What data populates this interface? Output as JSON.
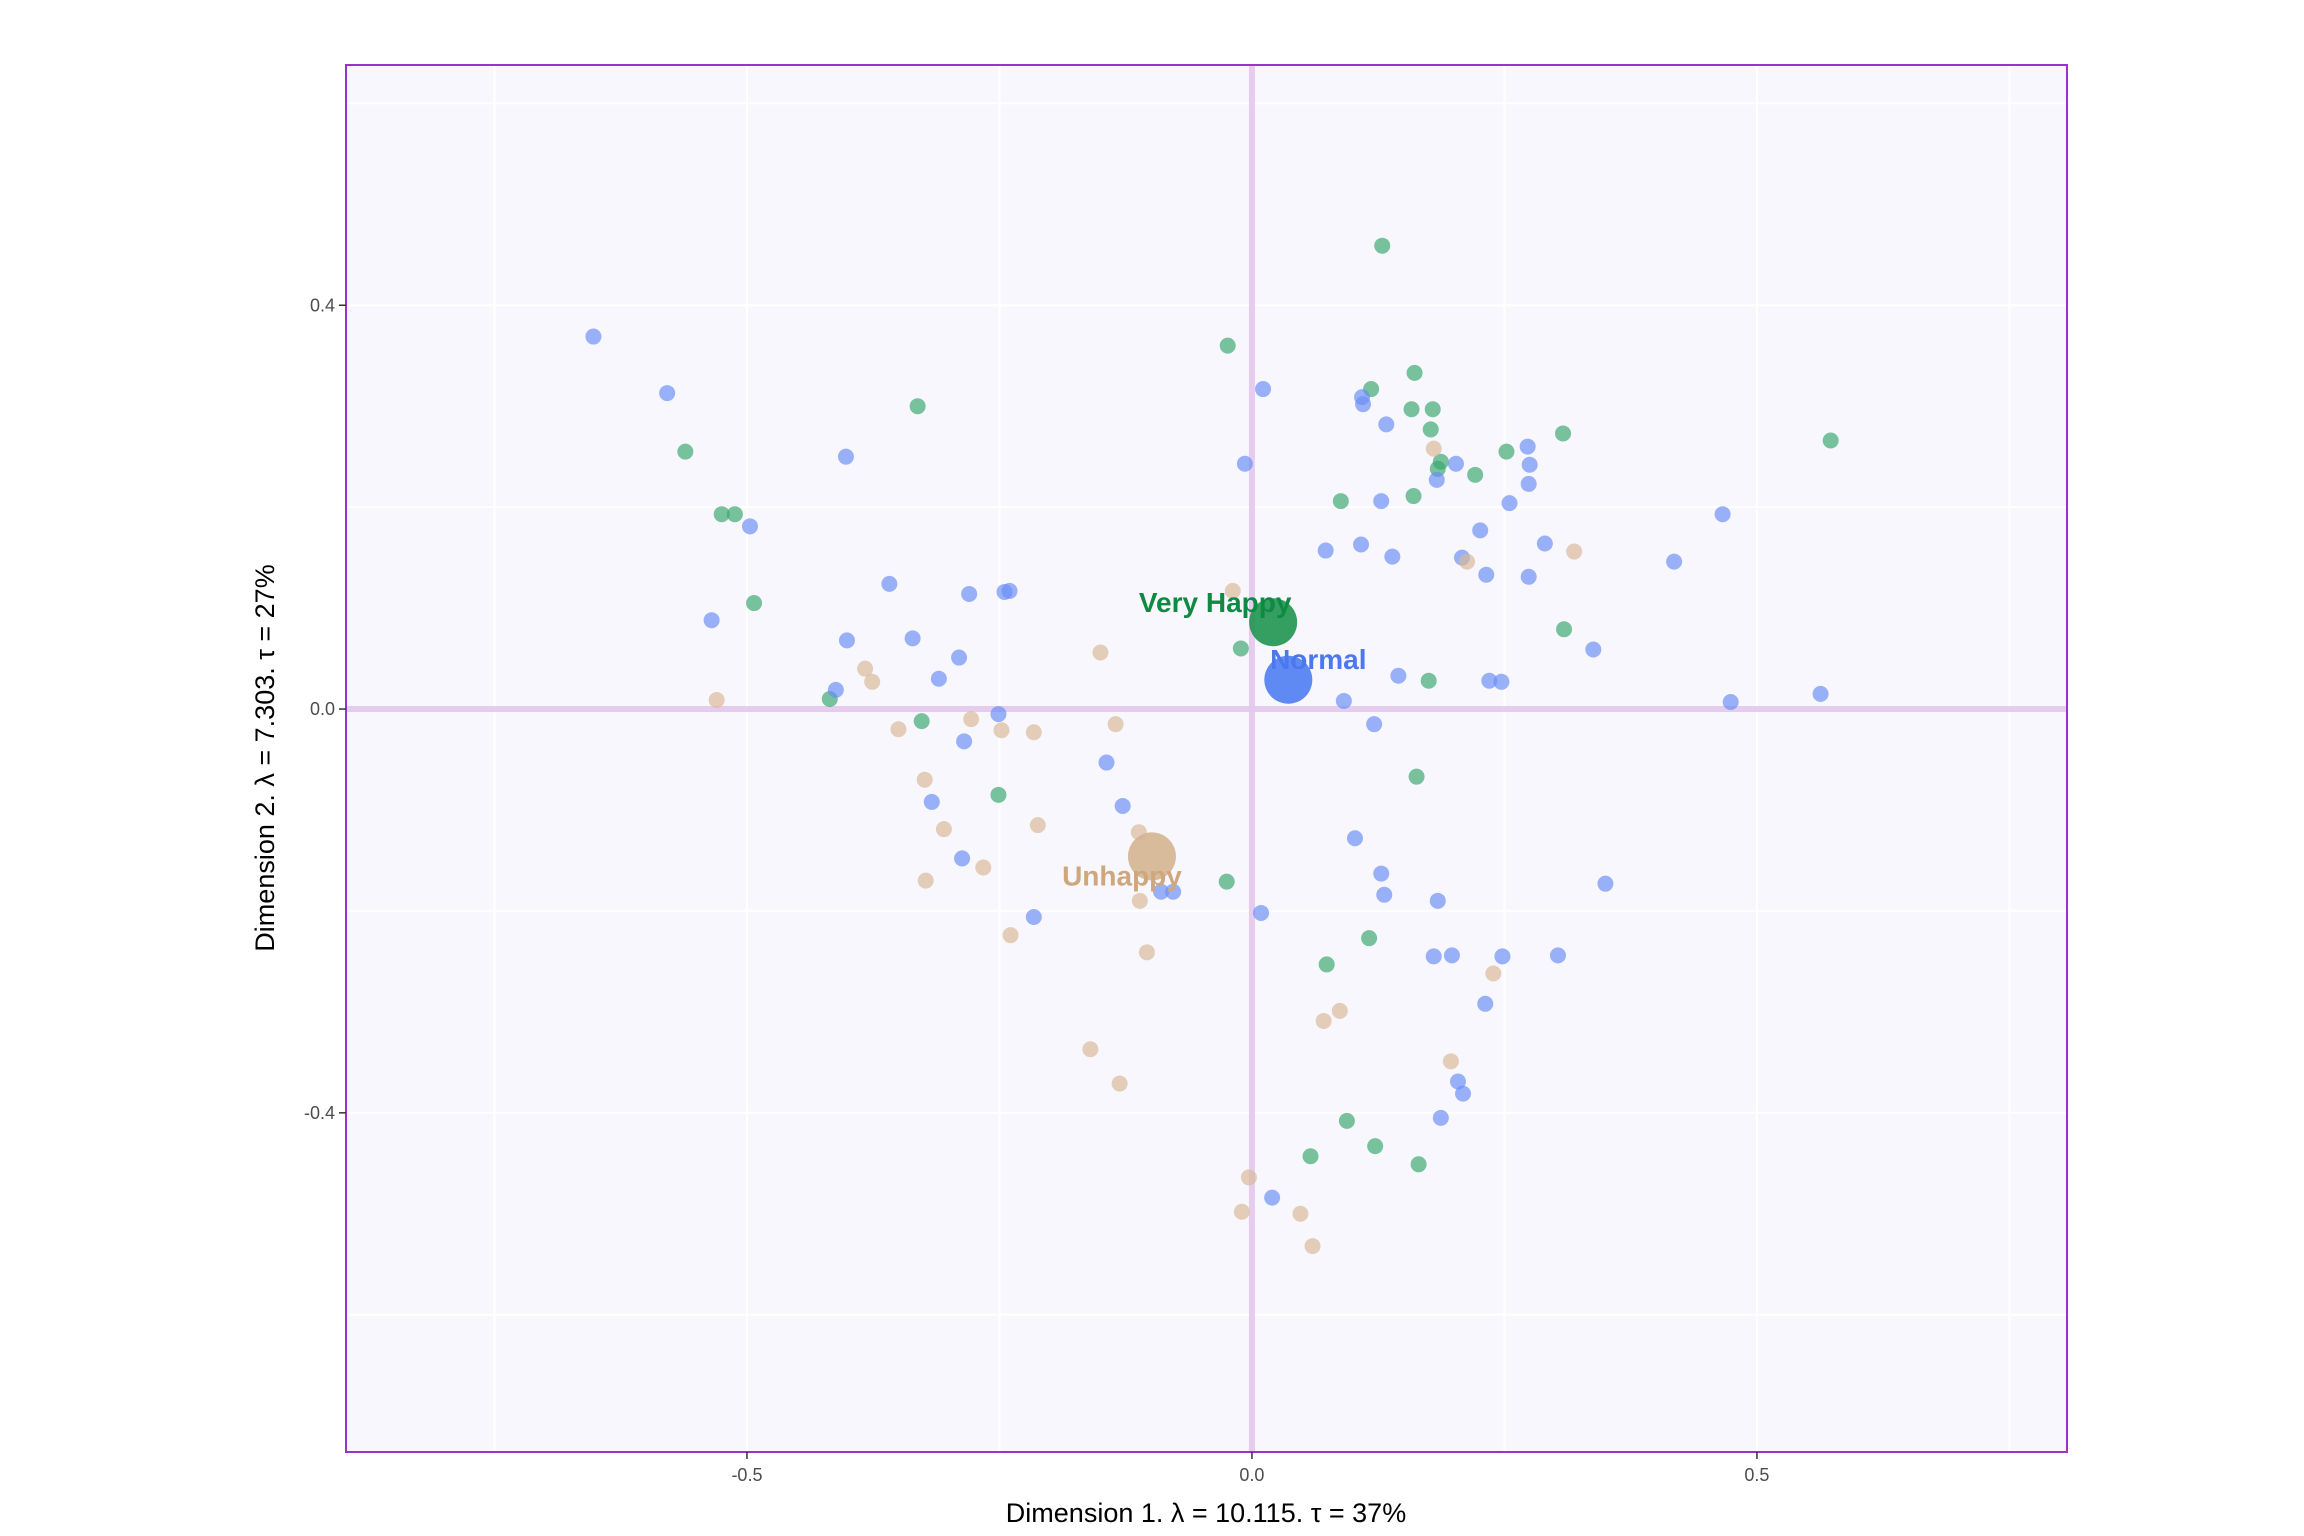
{
  "chart_data": {
    "type": "scatter",
    "xlabel": "Dimension 1.   λ = 10.115.  τ = 37%",
    "ylabel": "Dimension 2.   λ = 7.303.  τ = 27%",
    "xlim": [
      -0.897,
      0.807
    ],
    "ylim": [
      -0.736,
      0.638
    ],
    "x_ticks": [
      {
        "value": -0.5,
        "label": "-0.5"
      },
      {
        "value": 0.0,
        "label": "0.0"
      },
      {
        "value": 0.5,
        "label": "0.5"
      }
    ],
    "y_ticks": [
      {
        "value": 0.4,
        "label": "0.4"
      },
      {
        "value": 0.0,
        "label": "0.0"
      },
      {
        "value": -0.4,
        "label": "-0.4"
      }
    ],
    "grid": true,
    "reference_lines": {
      "x": 0,
      "y": 0
    },
    "colors": {
      "panel_background": "#f8f7fd",
      "panel_border": "#9933cc",
      "reference_line": "#e4c8ee",
      "grid": "#ffffff"
    },
    "series": [
      {
        "color": "#3aa66d",
        "points": [
          [
            0.129,
            0.459
          ],
          [
            -0.024,
            0.36
          ],
          [
            0.161,
            0.333
          ],
          [
            0.118,
            0.317
          ],
          [
            -0.331,
            0.3
          ],
          [
            0.158,
            0.297
          ],
          [
            0.179,
            0.297
          ],
          [
            0.177,
            0.277
          ],
          [
            0.308,
            0.273
          ],
          [
            0.573,
            0.266
          ],
          [
            -0.561,
            0.255
          ],
          [
            0.252,
            0.255
          ],
          [
            0.187,
            0.245
          ],
          [
            0.184,
            0.238
          ],
          [
            0.221,
            0.232
          ],
          [
            0.16,
            0.211
          ],
          [
            0.088,
            0.206
          ],
          [
            -0.525,
            0.193
          ],
          [
            -0.512,
            0.193
          ],
          [
            -0.493,
            0.105
          ],
          [
            0.309,
            0.079
          ],
          [
            -0.011,
            0.06
          ],
          [
            0.175,
            0.028
          ],
          [
            -0.418,
            0.01
          ],
          [
            -0.327,
            -0.012
          ],
          [
            0.163,
            -0.067
          ],
          [
            -0.251,
            -0.085
          ],
          [
            -0.025,
            -0.171
          ],
          [
            0.116,
            -0.227
          ],
          [
            0.074,
            -0.253
          ],
          [
            0.094,
            -0.408
          ],
          [
            0.058,
            -0.443
          ],
          [
            0.122,
            -0.433
          ],
          [
            0.165,
            -0.451
          ]
        ]
      },
      {
        "color": "#6a8ef4",
        "points": [
          [
            -0.652,
            0.369
          ],
          [
            -0.579,
            0.313
          ],
          [
            0.011,
            0.317
          ],
          [
            0.109,
            0.309
          ],
          [
            0.11,
            0.302
          ],
          [
            0.133,
            0.282
          ],
          [
            0.273,
            0.26
          ],
          [
            -0.402,
            0.25
          ],
          [
            -0.007,
            0.243
          ],
          [
            0.275,
            0.242
          ],
          [
            0.202,
            0.243
          ],
          [
            0.183,
            0.227
          ],
          [
            0.274,
            0.223
          ],
          [
            0.128,
            0.206
          ],
          [
            0.255,
            0.204
          ],
          [
            0.466,
            0.193
          ],
          [
            -0.497,
            0.181
          ],
          [
            0.226,
            0.177
          ],
          [
            0.29,
            0.164
          ],
          [
            0.108,
            0.163
          ],
          [
            0.073,
            0.157
          ],
          [
            0.139,
            0.151
          ],
          [
            0.208,
            0.15
          ],
          [
            0.418,
            0.146
          ],
          [
            0.232,
            0.133
          ],
          [
            0.274,
            0.131
          ],
          [
            -0.359,
            0.124
          ],
          [
            -0.28,
            0.114
          ],
          [
            -0.245,
            0.116
          ],
          [
            -0.24,
            0.117
          ],
          [
            -0.535,
            0.088
          ],
          [
            -0.401,
            0.068
          ],
          [
            -0.336,
            0.07
          ],
          [
            -0.29,
            0.051
          ],
          [
            0.338,
            0.059
          ],
          [
            -0.31,
            0.03
          ],
          [
            0.145,
            0.033
          ],
          [
            0.235,
            0.028
          ],
          [
            0.247,
            0.027
          ],
          [
            -0.412,
            0.019
          ],
          [
            0.091,
            0.008
          ],
          [
            0.474,
            0.007
          ],
          [
            0.563,
            0.015
          ],
          [
            -0.251,
            -0.005
          ],
          [
            0.121,
            -0.015
          ],
          [
            -0.285,
            -0.032
          ],
          [
            -0.144,
            -0.053
          ],
          [
            -0.317,
            -0.092
          ],
          [
            -0.128,
            -0.096
          ],
          [
            0.102,
            -0.128
          ],
          [
            -0.287,
            -0.148
          ],
          [
            0.128,
            -0.163
          ],
          [
            0.131,
            -0.184
          ],
          [
            0.184,
            -0.19
          ],
          [
            0.35,
            -0.173
          ],
          [
            -0.09,
            -0.181
          ],
          [
            -0.078,
            -0.181
          ],
          [
            0.009,
            -0.202
          ],
          [
            -0.216,
            -0.206
          ],
          [
            0.18,
            -0.245
          ],
          [
            0.198,
            -0.244
          ],
          [
            0.248,
            -0.245
          ],
          [
            0.303,
            -0.244
          ],
          [
            0.231,
            -0.292
          ],
          [
            0.204,
            -0.369
          ],
          [
            0.209,
            -0.381
          ],
          [
            0.187,
            -0.405
          ],
          [
            0.02,
            -0.484
          ]
        ]
      },
      {
        "color": "#d8b896",
        "points": [
          [
            0.18,
            0.258
          ],
          [
            -0.019,
            0.117
          ],
          [
            0.213,
            0.146
          ],
          [
            0.319,
            0.156
          ],
          [
            -0.15,
            0.056
          ],
          [
            -0.383,
            0.04
          ],
          [
            -0.376,
            0.027
          ],
          [
            -0.53,
            0.009
          ],
          [
            -0.278,
            -0.01
          ],
          [
            -0.135,
            -0.015
          ],
          [
            -0.35,
            -0.02
          ],
          [
            -0.248,
            -0.021
          ],
          [
            -0.216,
            -0.023
          ],
          [
            -0.324,
            -0.07
          ],
          [
            -0.305,
            -0.119
          ],
          [
            -0.212,
            -0.115
          ],
          [
            -0.112,
            -0.122
          ],
          [
            -0.266,
            -0.157
          ],
          [
            -0.323,
            -0.17
          ],
          [
            -0.111,
            -0.19
          ],
          [
            -0.239,
            -0.224
          ],
          [
            -0.104,
            -0.241
          ],
          [
            0.239,
            -0.262
          ],
          [
            0.087,
            -0.299
          ],
          [
            0.071,
            -0.309
          ],
          [
            -0.16,
            -0.337
          ],
          [
            -0.131,
            -0.371
          ],
          [
            0.197,
            -0.349
          ],
          [
            -0.003,
            -0.464
          ],
          [
            -0.01,
            -0.498
          ],
          [
            0.048,
            -0.5
          ],
          [
            0.06,
            -0.532
          ]
        ]
      }
    ],
    "centroids": [
      {
        "label": "Very Happy",
        "x": 0.021,
        "y": 0.086,
        "color": "#1f9450",
        "text_color": "#0e8a43"
      },
      {
        "label": "Normal",
        "x": 0.036,
        "y": 0.029,
        "color": "#4f7df2",
        "text_color": "#4b78ee"
      },
      {
        "label": "Unhappy",
        "x": -0.099,
        "y": -0.146,
        "color": "#d4b48f",
        "text_color": "#cfa77f"
      }
    ]
  }
}
